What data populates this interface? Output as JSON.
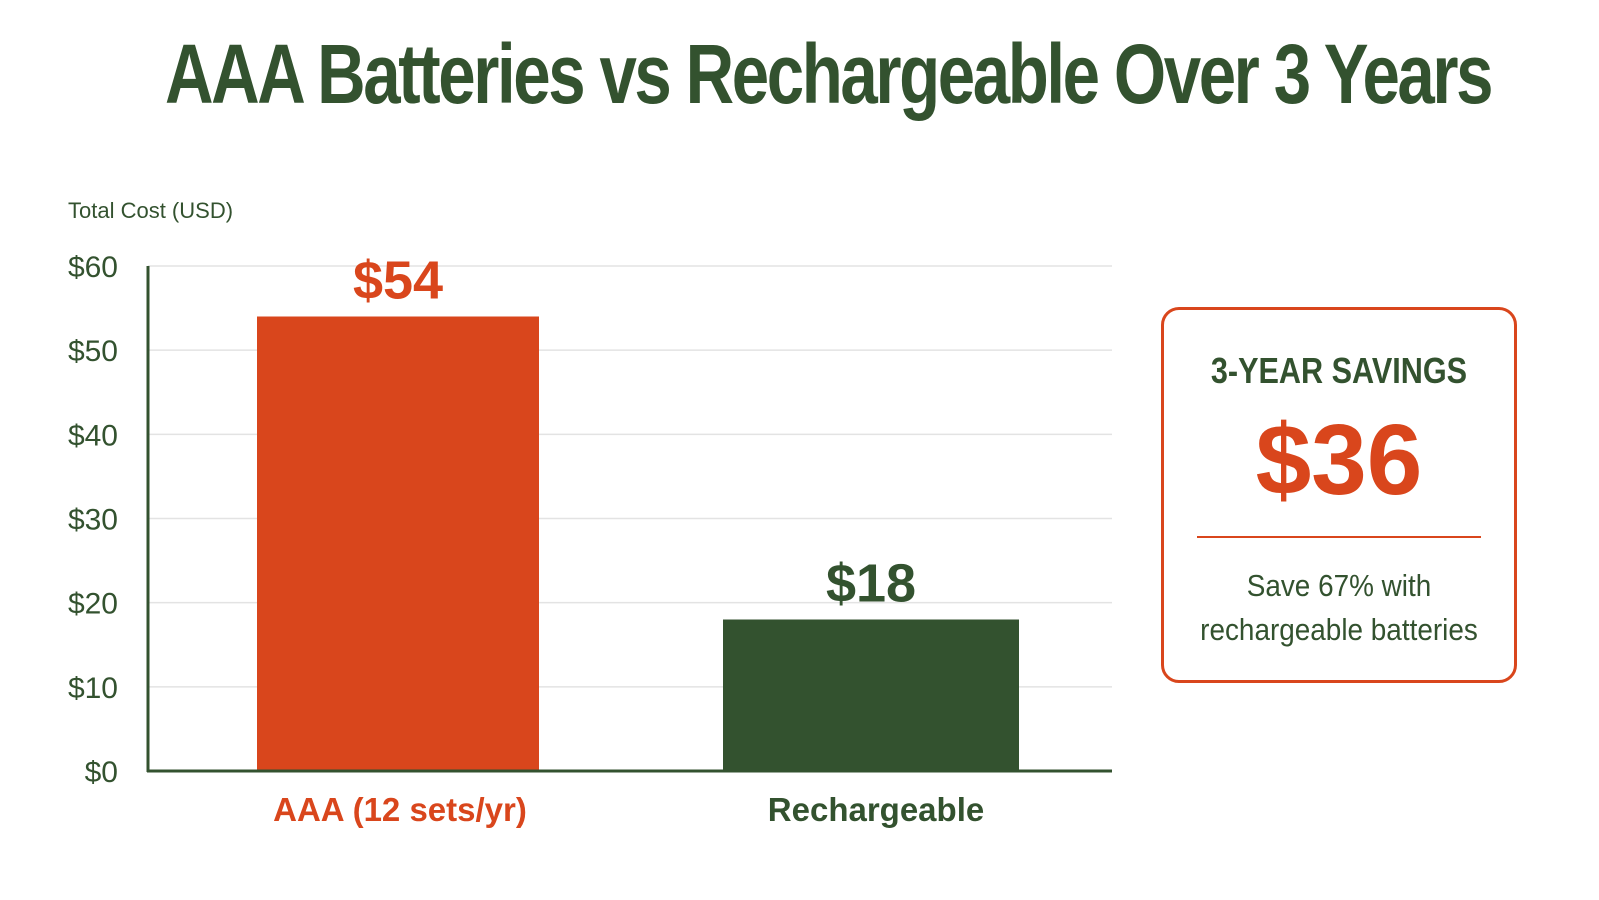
{
  "title": "AAA Batteries vs Rechargeable Over 3 Years",
  "colors": {
    "accent_orange": "#d9461c",
    "accent_green": "#33522f",
    "grid": "#e3e3e3"
  },
  "chart_data": {
    "type": "bar",
    "title": "AAA Batteries vs Rechargeable Over 3 Years",
    "ylabel": "Total Cost (USD)",
    "xlabel": "",
    "ylim": [
      0,
      60
    ],
    "yticks": [
      0,
      10,
      20,
      30,
      40,
      50,
      60
    ],
    "ytick_labels": [
      "$0",
      "$10",
      "$20",
      "$30",
      "$40",
      "$50",
      "$60"
    ],
    "grid": true,
    "categories": [
      "AAA (12 sets/yr)",
      "Rechargeable"
    ],
    "values": [
      54,
      18
    ],
    "value_labels": [
      "$54",
      "$18"
    ],
    "bar_colors": [
      "#d9461c",
      "#33522f"
    ]
  },
  "savings_box": {
    "heading": "3-YEAR SAVINGS",
    "amount": "$36",
    "note_line1": "Save 67% with",
    "note_line2": "rechargeable batteries"
  }
}
